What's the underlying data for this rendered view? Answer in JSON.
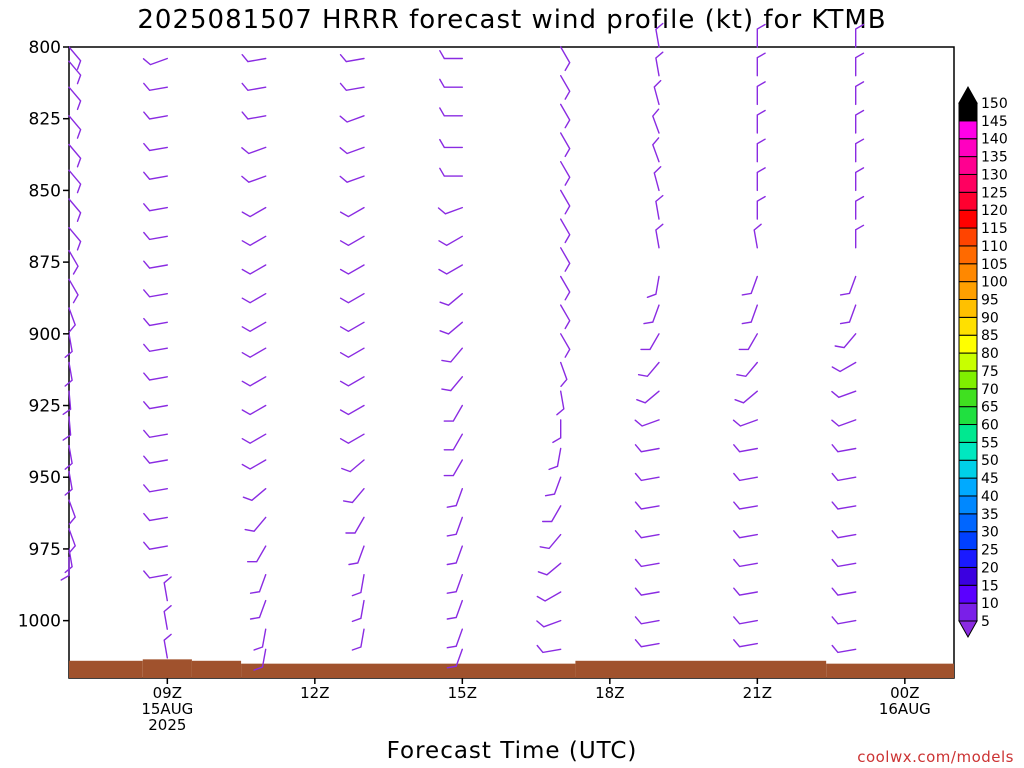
{
  "title": "2025081507 HRRR forecast wind profile (kt) for KTMB",
  "credit": "coolwx.com/models",
  "chart_data": {
    "type": "wind-barb time-height section",
    "title": "2025081507 HRRR forecast wind profile (kt) for KTMB",
    "xlabel": "Forecast Time (UTC)",
    "ylabel": "",
    "y_axis": {
      "ticks": [
        800,
        825,
        850,
        875,
        900,
        925,
        950,
        975,
        1000
      ],
      "ylim": [
        800,
        1020
      ],
      "inverted": true
    },
    "x_axis": {
      "xlim": [
        7,
        25
      ],
      "ticks": [
        {
          "x": 9,
          "lines": [
            "09Z",
            "15AUG",
            "2025"
          ]
        },
        {
          "x": 12,
          "lines": [
            "12Z"
          ]
        },
        {
          "x": 15,
          "lines": [
            "15Z"
          ]
        },
        {
          "x": 18,
          "lines": [
            "18Z"
          ]
        },
        {
          "x": 21,
          "lines": [
            "21Z"
          ]
        },
        {
          "x": 24,
          "lines": [
            "00Z",
            "16AUG"
          ]
        }
      ]
    },
    "barb_color": "#8a2be2",
    "ground_color": "#a0522d",
    "ground_pressure": [
      {
        "x0": 7,
        "x1": 8.5,
        "p": 1014
      },
      {
        "x0": 8.5,
        "x1": 9.5,
        "p": 1013.5
      },
      {
        "x0": 9.5,
        "x1": 10.5,
        "p": 1014
      },
      {
        "x0": 10.5,
        "x1": 17.3,
        "p": 1015
      },
      {
        "x0": 17.3,
        "x1": 22.4,
        "p": 1014
      },
      {
        "x0": 22.4,
        "x1": 25,
        "p": 1015
      }
    ],
    "levels": [
      800,
      810,
      820,
      830,
      840,
      850,
      860,
      870,
      880,
      890,
      900,
      910,
      920,
      930,
      940,
      950,
      960,
      970,
      980,
      990,
      1000,
      1010
    ],
    "series": [
      {
        "time": 7,
        "levels": [
          800,
          805,
          814,
          824,
          834,
          843,
          853,
          863,
          871,
          881,
          891,
          900,
          910,
          920,
          929,
          939,
          948,
          958,
          968,
          975,
          978
        ],
        "dir": [
          140,
          140,
          140,
          140,
          140,
          140,
          140,
          140,
          150,
          150,
          160,
          170,
          170,
          175,
          175,
          170,
          170,
          160,
          160,
          170,
          180
        ],
        "spd": [
          5,
          5,
          5,
          5,
          5,
          5,
          5,
          5,
          5,
          5,
          5,
          5,
          5,
          5,
          5,
          5,
          5,
          5,
          5,
          5,
          5
        ]
      },
      {
        "time": 9,
        "levels": [
          804,
          814,
          824,
          835,
          845,
          856,
          866,
          876,
          886,
          896,
          905,
          915,
          925,
          935,
          944,
          954,
          964,
          974,
          984,
          993,
          1003,
          1013
        ],
        "dir": [
          250,
          260,
          260,
          260,
          260,
          260,
          260,
          260,
          260,
          260,
          260,
          260,
          260,
          260,
          260,
          260,
          260,
          260,
          260,
          350,
          350,
          350
        ],
        "spd": [
          5,
          5,
          5,
          5,
          5,
          5,
          5,
          5,
          5,
          5,
          5,
          5,
          5,
          5,
          5,
          5,
          5,
          5,
          5,
          5,
          5,
          5
        ]
      },
      {
        "time": 11,
        "levels": [
          804,
          814,
          824,
          835,
          845,
          856,
          866,
          876,
          886,
          896,
          905,
          915,
          925,
          935,
          944,
          954,
          964,
          974,
          984,
          993,
          1003,
          1010
        ],
        "dir": [
          260,
          260,
          260,
          250,
          250,
          240,
          240,
          240,
          240,
          240,
          240,
          240,
          240,
          240,
          240,
          230,
          220,
          210,
          200,
          200,
          190,
          190
        ],
        "spd": [
          5,
          5,
          5,
          5,
          5,
          5,
          5,
          5,
          5,
          5,
          5,
          5,
          5,
          5,
          5,
          5,
          5,
          5,
          5,
          5,
          5,
          5
        ]
      },
      {
        "time": 13,
        "levels": [
          804,
          814,
          824,
          835,
          845,
          856,
          866,
          876,
          886,
          896,
          905,
          915,
          925,
          935,
          944,
          954,
          964,
          974,
          984,
          993,
          1003
        ],
        "dir": [
          260,
          260,
          250,
          250,
          250,
          240,
          240,
          240,
          240,
          240,
          240,
          240,
          240,
          240,
          230,
          220,
          210,
          200,
          190,
          190,
          190
        ],
        "spd": [
          5,
          5,
          5,
          5,
          5,
          5,
          5,
          5,
          5,
          5,
          5,
          5,
          5,
          5,
          5,
          5,
          5,
          5,
          5,
          5,
          5
        ]
      },
      {
        "time": 15,
        "levels": [
          804,
          814,
          824,
          835,
          845,
          856,
          866,
          876,
          886,
          896,
          905,
          915,
          925,
          935,
          944,
          954,
          964,
          974,
          984,
          993,
          1003,
          1010
        ],
        "dir": [
          270,
          270,
          270,
          270,
          270,
          250,
          240,
          240,
          230,
          230,
          220,
          220,
          210,
          210,
          210,
          200,
          200,
          200,
          200,
          200,
          200,
          200
        ],
        "spd": [
          5,
          5,
          5,
          5,
          5,
          5,
          5,
          5,
          5,
          5,
          5,
          5,
          5,
          5,
          5,
          5,
          5,
          5,
          5,
          5,
          5,
          5
        ]
      },
      {
        "time": 17,
        "levels": [
          800,
          810,
          820,
          830,
          840,
          850,
          860,
          870,
          880,
          890,
          900,
          910,
          920,
          930,
          940,
          950,
          960,
          970,
          980,
          990,
          1000,
          1010
        ],
        "dir": [
          150,
          150,
          150,
          150,
          150,
          150,
          150,
          150,
          150,
          150,
          150,
          160,
          170,
          180,
          190,
          200,
          210,
          220,
          230,
          240,
          250,
          260
        ],
        "spd": [
          5,
          5,
          5,
          5,
          5,
          5,
          5,
          5,
          5,
          5,
          5,
          5,
          5,
          5,
          5,
          5,
          5,
          5,
          5,
          5,
          5,
          5
        ]
      },
      {
        "time": 19,
        "levels": [
          800,
          810,
          820,
          830,
          840,
          850,
          860,
          870,
          880,
          890,
          900,
          910,
          920,
          930,
          940,
          950,
          960,
          970,
          980,
          990,
          1000,
          1008
        ],
        "dir": [
          350,
          350,
          345,
          340,
          340,
          345,
          350,
          350,
          190,
          200,
          210,
          220,
          230,
          250,
          260,
          260,
          260,
          260,
          260,
          260,
          260,
          260
        ],
        "spd": [
          5,
          5,
          5,
          5,
          5,
          5,
          5,
          5,
          5,
          5,
          5,
          5,
          5,
          5,
          5,
          5,
          5,
          5,
          5,
          5,
          5,
          5
        ]
      },
      {
        "time": 21,
        "levels": [
          800,
          810,
          820,
          830,
          840,
          850,
          860,
          870,
          880,
          890,
          900,
          910,
          920,
          930,
          940,
          950,
          960,
          970,
          980,
          990,
          1000,
          1008
        ],
        "dir": [
          0,
          0,
          0,
          0,
          0,
          0,
          0,
          350,
          200,
          200,
          210,
          220,
          230,
          250,
          260,
          260,
          260,
          260,
          260,
          260,
          260,
          260
        ],
        "spd": [
          5,
          5,
          5,
          5,
          5,
          5,
          5,
          5,
          5,
          5,
          5,
          5,
          5,
          5,
          5,
          5,
          5,
          5,
          5,
          5,
          5,
          5
        ]
      },
      {
        "time": 23,
        "levels": [
          800,
          810,
          820,
          830,
          840,
          850,
          860,
          870,
          880,
          890,
          900,
          910,
          920,
          930,
          940,
          950,
          960,
          970,
          980,
          990,
          1000,
          1010
        ],
        "dir": [
          0,
          0,
          0,
          0,
          0,
          0,
          0,
          0,
          200,
          200,
          220,
          240,
          250,
          250,
          260,
          260,
          260,
          260,
          260,
          260,
          260,
          260
        ],
        "spd": [
          5,
          5,
          5,
          5,
          5,
          5,
          5,
          5,
          5,
          5,
          5,
          5,
          5,
          5,
          5,
          5,
          5,
          5,
          5,
          5,
          5,
          5
        ]
      }
    ],
    "colorbar": {
      "labels": [
        5,
        10,
        15,
        20,
        25,
        30,
        35,
        40,
        45,
        50,
        55,
        60,
        65,
        70,
        75,
        80,
        85,
        90,
        95,
        100,
        105,
        110,
        115,
        120,
        125,
        130,
        135,
        140,
        145,
        150
      ],
      "colors": [
        "#8a2be2",
        "#7a1fe8",
        "#5b00ff",
        "#3b00e0",
        "#1a1aff",
        "#0040ff",
        "#0066ff",
        "#0088ff",
        "#00aaff",
        "#00d0e8",
        "#00e8c0",
        "#00e890",
        "#20e040",
        "#40e020",
        "#80f000",
        "#c8ff00",
        "#ffff00",
        "#ffe000",
        "#ffc000",
        "#ffa000",
        "#ff8800",
        "#ff6a00",
        "#ff4400",
        "#ff0000",
        "#ff0030",
        "#ff0060",
        "#ff0090",
        "#ff00c0",
        "#ff00e8",
        "#000000"
      ]
    }
  }
}
